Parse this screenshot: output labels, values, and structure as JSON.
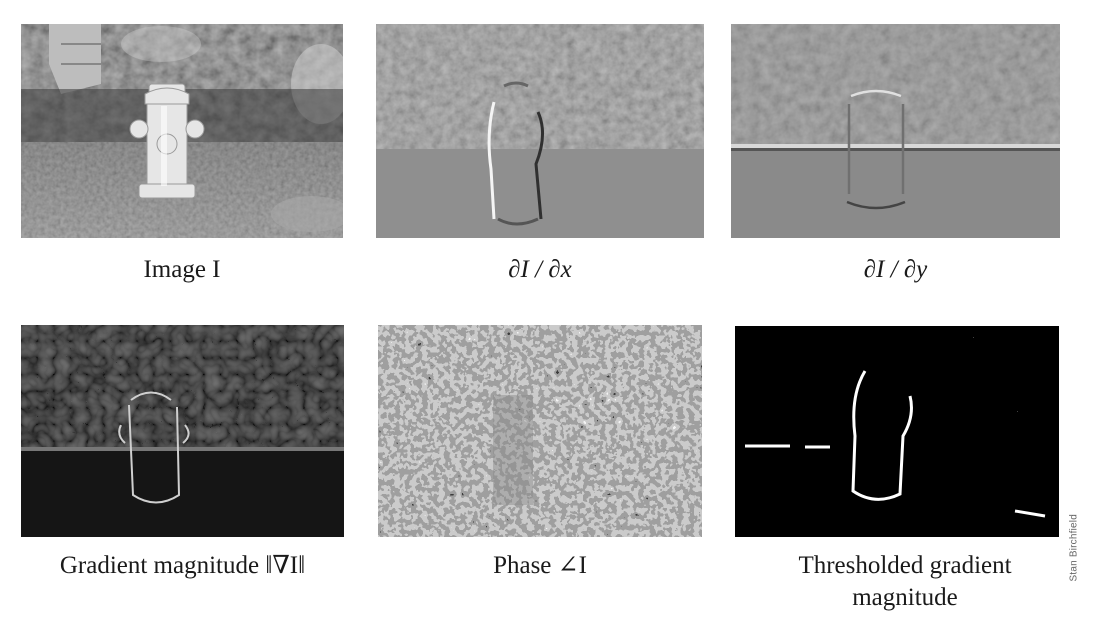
{
  "panels": [
    {
      "caption": "Image I"
    },
    {
      "caption": "∂I / ∂x"
    },
    {
      "caption": "∂I / ∂y"
    },
    {
      "caption": "Gradient magnitude ‖∇I‖"
    },
    {
      "caption": "Phase ∠I"
    },
    {
      "caption": "Thresholded gradient magnitude"
    }
  ],
  "credit": "Stan Birchfield"
}
